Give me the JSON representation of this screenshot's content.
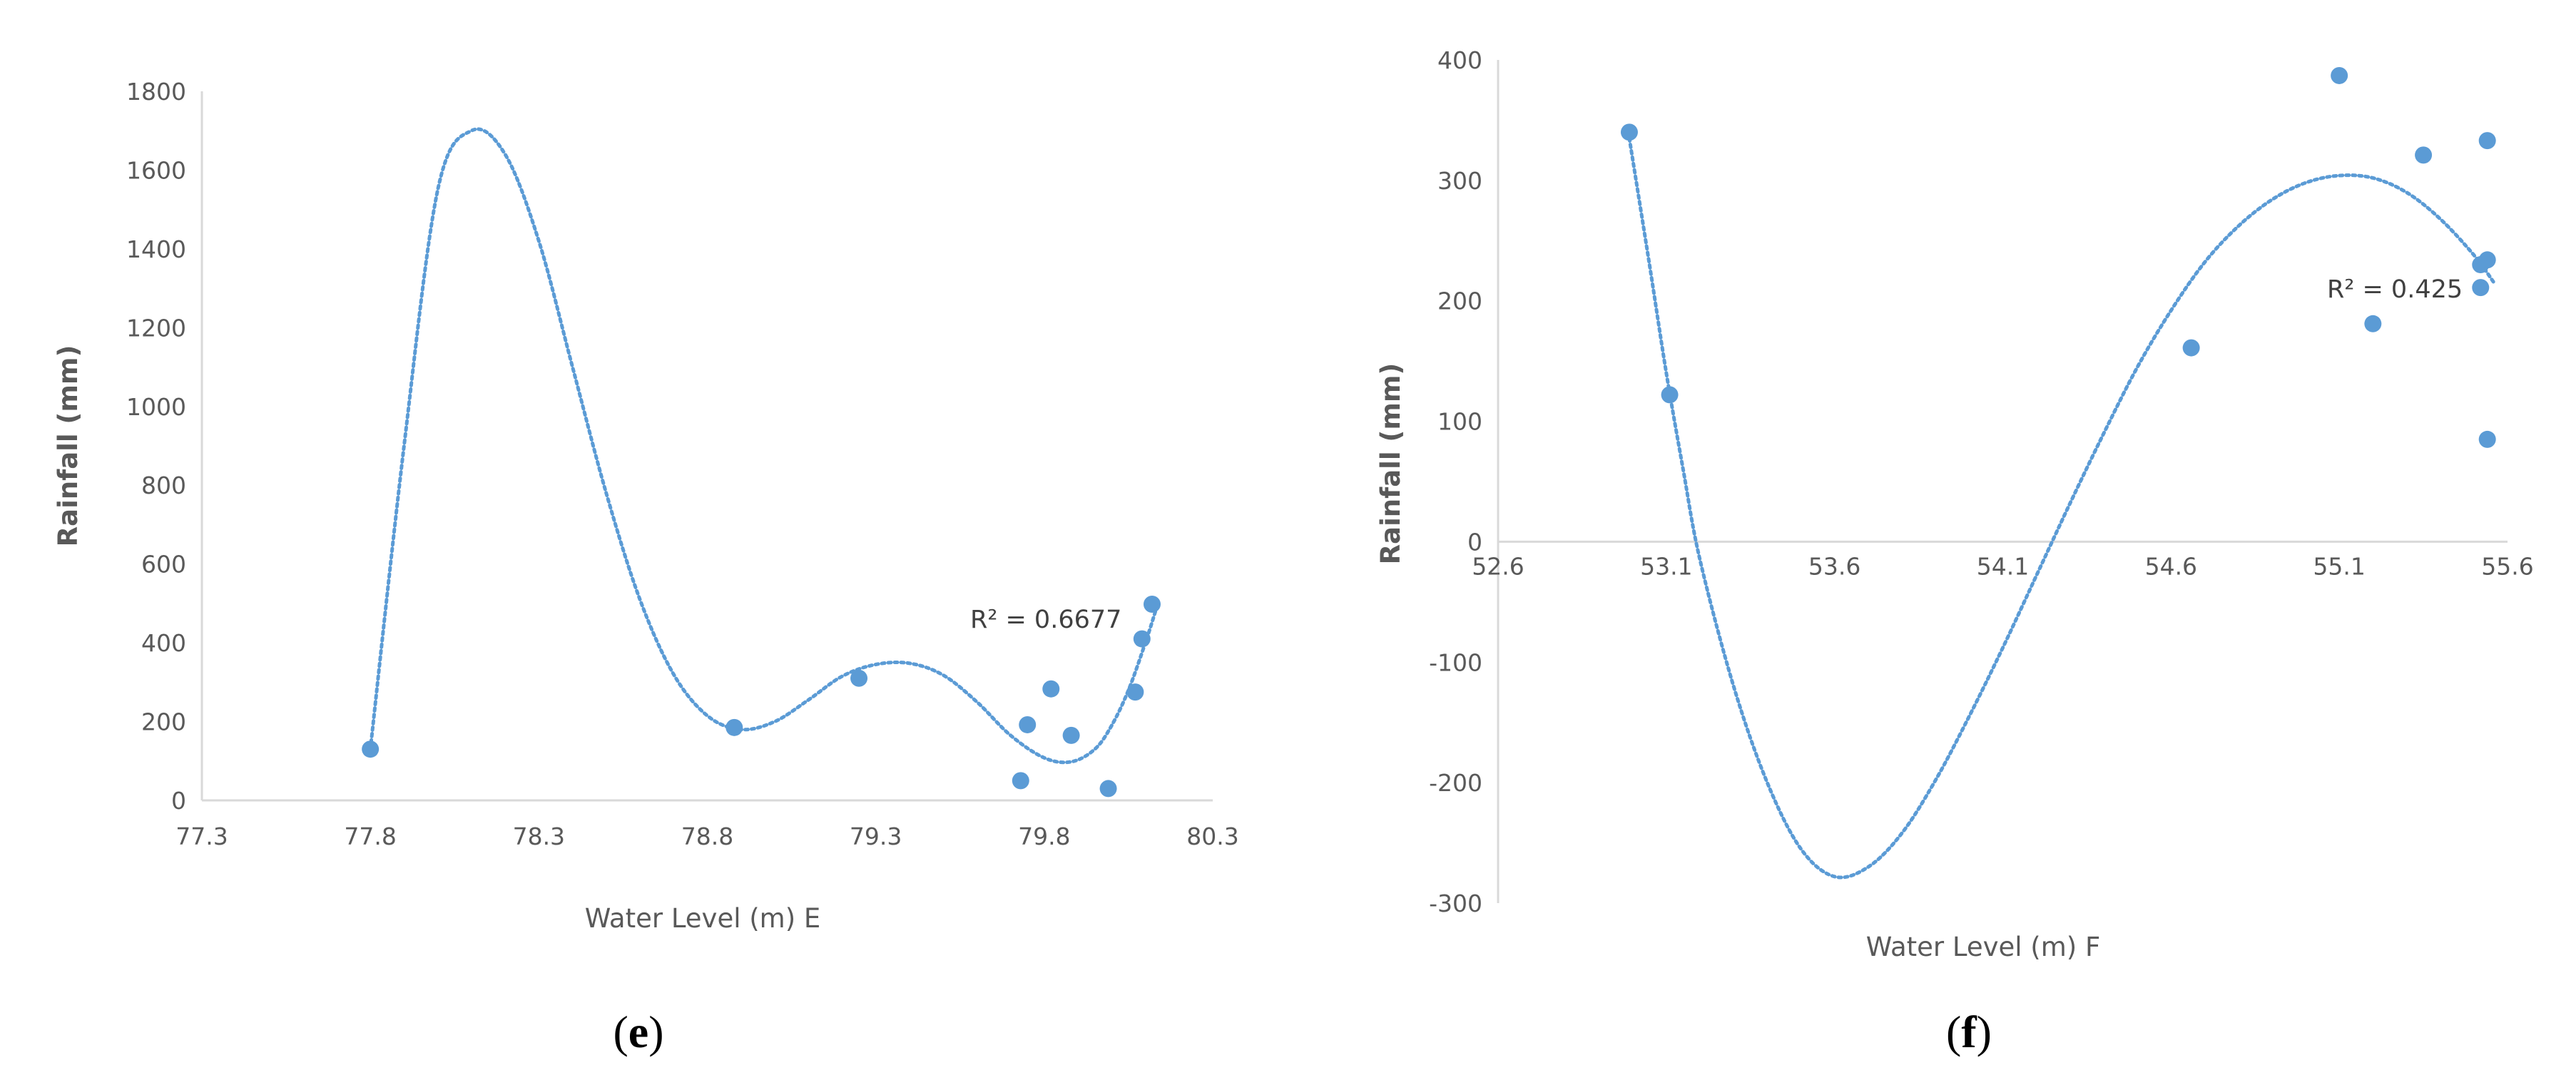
{
  "figure": {
    "panels": [
      "e",
      "f"
    ]
  },
  "chart_data": [
    {
      "type": "scatter",
      "panel_label": "e",
      "xlabel": "Water Level (m) E",
      "ylabel": "Rainfall (mm)",
      "xlim": [
        77.3,
        80.3
      ],
      "ylim": [
        0,
        1800
      ],
      "x_ticks": [
        "77.3",
        "77.8",
        "78.3",
        "78.8",
        "79.3",
        "79.8",
        "80.3"
      ],
      "y_ticks": [
        "0",
        "200",
        "400",
        "600",
        "800",
        "1000",
        "1200",
        "1400",
        "1600",
        "1800"
      ],
      "grid": false,
      "marker_color": "#5b9bd5",
      "trendline": {
        "type": "polynomial",
        "style": "dotted",
        "color": "#5b9bd5",
        "r_squared_label": "R² = 0.6677"
      },
      "points": [
        {
          "x": 77.8,
          "y": 130
        },
        {
          "x": 78.88,
          "y": 185
        },
        {
          "x": 79.25,
          "y": 310
        },
        {
          "x": 79.73,
          "y": 50
        },
        {
          "x": 79.75,
          "y": 192
        },
        {
          "x": 79.82,
          "y": 283
        },
        {
          "x": 79.88,
          "y": 165
        },
        {
          "x": 79.99,
          "y": 30
        },
        {
          "x": 80.07,
          "y": 275
        },
        {
          "x": 80.09,
          "y": 410
        },
        {
          "x": 80.12,
          "y": 498
        }
      ],
      "trend_curve": [
        [
          77.8,
          130
        ],
        [
          77.9,
          900
        ],
        [
          78.0,
          1550
        ],
        [
          78.1,
          1700
        ],
        [
          78.2,
          1640
        ],
        [
          78.3,
          1420
        ],
        [
          78.4,
          1100
        ],
        [
          78.5,
          780
        ],
        [
          78.6,
          510
        ],
        [
          78.7,
          320
        ],
        [
          78.8,
          215
        ],
        [
          78.9,
          180
        ],
        [
          79.0,
          200
        ],
        [
          79.1,
          255
        ],
        [
          79.2,
          315
        ],
        [
          79.3,
          345
        ],
        [
          79.4,
          348
        ],
        [
          79.5,
          318
        ],
        [
          79.6,
          250
        ],
        [
          79.7,
          165
        ],
        [
          79.8,
          108
        ],
        [
          79.88,
          98
        ],
        [
          79.95,
          130
        ],
        [
          80.0,
          190
        ],
        [
          80.05,
          280
        ],
        [
          80.1,
          400
        ],
        [
          80.13,
          480
        ]
      ]
    },
    {
      "type": "scatter",
      "panel_label": "f",
      "xlabel": "Water Level (m) F",
      "ylabel": "Rainfall (mm)",
      "xlim": [
        52.6,
        55.6
      ],
      "ylim": [
        -300,
        400
      ],
      "x_ticks": [
        "52.6",
        "53.1",
        "53.6",
        "54.1",
        "54.6",
        "55.1",
        "55.6"
      ],
      "y_ticks": [
        "-300",
        "-200",
        "-100",
        "0",
        "100",
        "200",
        "300",
        "400"
      ],
      "grid": false,
      "marker_color": "#5b9bd5",
      "trendline": {
        "type": "polynomial",
        "style": "dotted",
        "color": "#5b9bd5",
        "r_squared_label": "R² = 0.425"
      },
      "points": [
        {
          "x": 52.99,
          "y": 340
        },
        {
          "x": 53.11,
          "y": 122
        },
        {
          "x": 54.66,
          "y": 161
        },
        {
          "x": 55.1,
          "y": 387
        },
        {
          "x": 55.2,
          "y": 181
        },
        {
          "x": 55.35,
          "y": 321
        },
        {
          "x": 55.52,
          "y": 230
        },
        {
          "x": 55.52,
          "y": 211
        },
        {
          "x": 55.54,
          "y": 333
        },
        {
          "x": 55.54,
          "y": 234
        },
        {
          "x": 55.54,
          "y": 85
        }
      ],
      "trend_curve": [
        [
          52.99,
          335
        ],
        [
          53.05,
          230
        ],
        [
          53.1,
          140
        ],
        [
          53.15,
          60
        ],
        [
          53.2,
          -15
        ],
        [
          53.3,
          -120
        ],
        [
          53.4,
          -200
        ],
        [
          53.5,
          -255
        ],
        [
          53.6,
          -278
        ],
        [
          53.7,
          -270
        ],
        [
          53.8,
          -242
        ],
        [
          53.9,
          -198
        ],
        [
          54.0,
          -145
        ],
        [
          54.1,
          -88
        ],
        [
          54.2,
          -28
        ],
        [
          54.3,
          32
        ],
        [
          54.4,
          90
        ],
        [
          54.5,
          145
        ],
        [
          54.6,
          192
        ],
        [
          54.7,
          232
        ],
        [
          54.8,
          262
        ],
        [
          54.9,
          284
        ],
        [
          55.0,
          298
        ],
        [
          55.1,
          304
        ],
        [
          55.2,
          302
        ],
        [
          55.3,
          290
        ],
        [
          55.4,
          268
        ],
        [
          55.5,
          238
        ],
        [
          55.56,
          215
        ]
      ]
    }
  ]
}
